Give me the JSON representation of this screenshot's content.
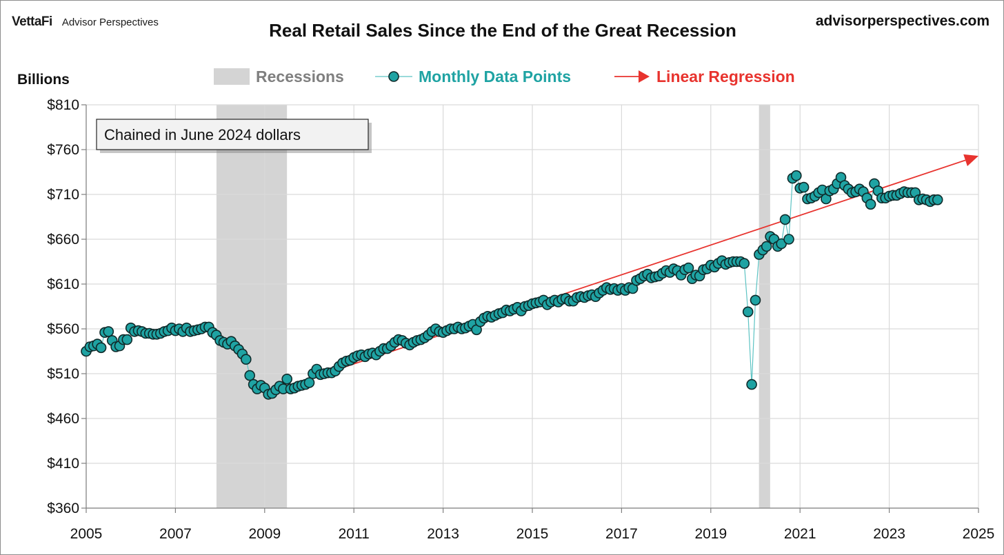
{
  "header": {
    "brand": "VettaFi",
    "brand_sub": "Advisor Perspectives",
    "site": "advisorperspectives.com"
  },
  "chart_data": {
    "type": "line",
    "title": "Real Retail Sales Since the End of the Great Recession",
    "ylabel": "Billions",
    "xlabel": "",
    "annotation": "Chained in June 2024 dollars",
    "xlim": [
      2005,
      2025
    ],
    "ylim": [
      360,
      810
    ],
    "x_ticks": [
      "2005",
      "2007",
      "2009",
      "2011",
      "2013",
      "2015",
      "2017",
      "2019",
      "2021",
      "2023",
      "2025"
    ],
    "y_ticks": [
      "$810",
      "$760",
      "$710",
      "$660",
      "$610",
      "$560",
      "$510",
      "$460",
      "$410",
      "$360"
    ],
    "y_tick_values": [
      810,
      760,
      710,
      660,
      610,
      560,
      510,
      460,
      410,
      360
    ],
    "grid": true,
    "legend": {
      "position": "top",
      "entries": [
        {
          "label": "Recessions",
          "color": "#bfbfbf"
        },
        {
          "label": "Monthly Data Points",
          "color": "#1fa3a3"
        },
        {
          "label": "Linear Regression",
          "color": "#e8332e"
        }
      ]
    },
    "recessions": [
      [
        2007.92,
        2009.5
      ],
      [
        2020.08,
        2020.33
      ]
    ],
    "regression": {
      "x": [
        2009.5,
        2025.0
      ],
      "y": [
        496,
        753
      ]
    },
    "series": [
      {
        "name": "Monthly Data Points",
        "marker_color": "#1fa3a3",
        "line_color": "#5cc3c3",
        "y": [
          535,
          540,
          541,
          543,
          539,
          556,
          557,
          547,
          540,
          541,
          548,
          548,
          561,
          557,
          558,
          557,
          555,
          555,
          554,
          554,
          555,
          557,
          558,
          561,
          558,
          560,
          557,
          561,
          557,
          558,
          559,
          560,
          562,
          562,
          556,
          553,
          547,
          545,
          543,
          546,
          541,
          537,
          532,
          526,
          508,
          498,
          493,
          497,
          494,
          487,
          488,
          492,
          496,
          493,
          504,
          493,
          494,
          496,
          497,
          498,
          500,
          510,
          515,
          509,
          510,
          511,
          511,
          513,
          518,
          522,
          524,
          525,
          528,
          530,
          531,
          529,
          532,
          533,
          531,
          535,
          538,
          538,
          541,
          545,
          548,
          547,
          544,
          542,
          545,
          547,
          548,
          550,
          553,
          557,
          560,
          557,
          556,
          558,
          560,
          560,
          562,
          560,
          561,
          563,
          565,
          559,
          568,
          572,
          574,
          573,
          575,
          577,
          578,
          581,
          580,
          582,
          584,
          580,
          585,
          586,
          588,
          589,
          590,
          592,
          587,
          590,
          592,
          590,
          593,
          594,
          591,
          591,
          595,
          596,
          595,
          597,
          598,
          596,
          600,
          603,
          606,
          604,
          605,
          603,
          605,
          603,
          606,
          605,
          614,
          616,
          619,
          621,
          617,
          618,
          619,
          622,
          625,
          623,
          627,
          625,
          620,
          626,
          628,
          616,
          620,
          619,
          626,
          627,
          631,
          629,
          633,
          636,
          632,
          634,
          635,
          635,
          635,
          633,
          579,
          498,
          592,
          643,
          648,
          652,
          663,
          660,
          652,
          655,
          682,
          660,
          728,
          731,
          717,
          718,
          705,
          706,
          708,
          712,
          715,
          705,
          714,
          716,
          722,
          729,
          720,
          716,
          712,
          713,
          716,
          713,
          706,
          699,
          722,
          714,
          706,
          706,
          708,
          709,
          709,
          711,
          713,
          712,
          712,
          712,
          704,
          705,
          704,
          702,
          704,
          704
        ]
      }
    ]
  }
}
